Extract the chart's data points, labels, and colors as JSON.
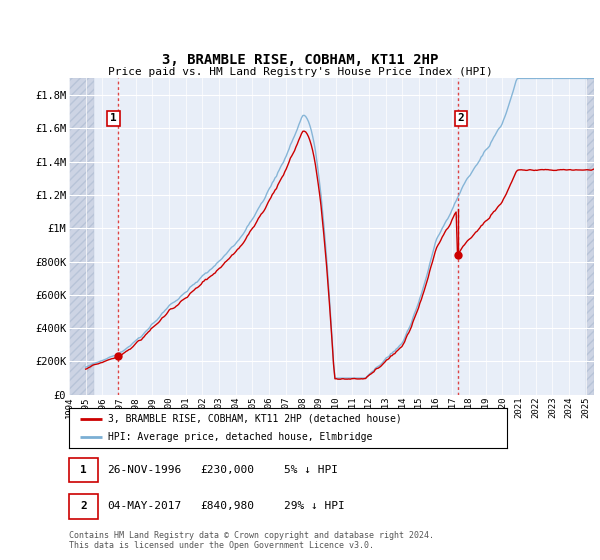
{
  "title": "3, BRAMBLE RISE, COBHAM, KT11 2HP",
  "subtitle": "Price paid vs. HM Land Registry's House Price Index (HPI)",
  "ylabel_ticks": [
    "£0",
    "£200K",
    "£400K",
    "£600K",
    "£800K",
    "£1M",
    "£1.2M",
    "£1.4M",
    "£1.6M",
    "£1.8M"
  ],
  "ytick_values": [
    0,
    200000,
    400000,
    600000,
    800000,
    1000000,
    1200000,
    1400000,
    1600000,
    1800000
  ],
  "ylim": [
    0,
    1900000
  ],
  "xlim_start": 1994.0,
  "xlim_end": 2025.5,
  "transaction1_x": 1996.92,
  "transaction1_y": 230000,
  "transaction1_label": "1",
  "transaction2_x": 2017.35,
  "transaction2_y": 840980,
  "transaction2_label": "2",
  "hatch_left_end": 1995.5,
  "hatch_right_start": 2025.0,
  "legend_line1": "3, BRAMBLE RISE, COBHAM, KT11 2HP (detached house)",
  "legend_line2": "HPI: Average price, detached house, Elmbridge",
  "table_row1": [
    "1",
    "26-NOV-1996",
    "£230,000",
    "5% ↓ HPI"
  ],
  "table_row2": [
    "2",
    "04-MAY-2017",
    "£840,980",
    "29% ↓ HPI"
  ],
  "footer": "Contains HM Land Registry data © Crown copyright and database right 2024.\nThis data is licensed under the Open Government Licence v3.0.",
  "line_color_red": "#cc0000",
  "line_color_blue": "#7bafd4",
  "background_plot": "#e8eef8",
  "hatch_color": "#cdd4e4",
  "grid_color": "#ffffff",
  "dashed_vline_color": "#dd4444"
}
